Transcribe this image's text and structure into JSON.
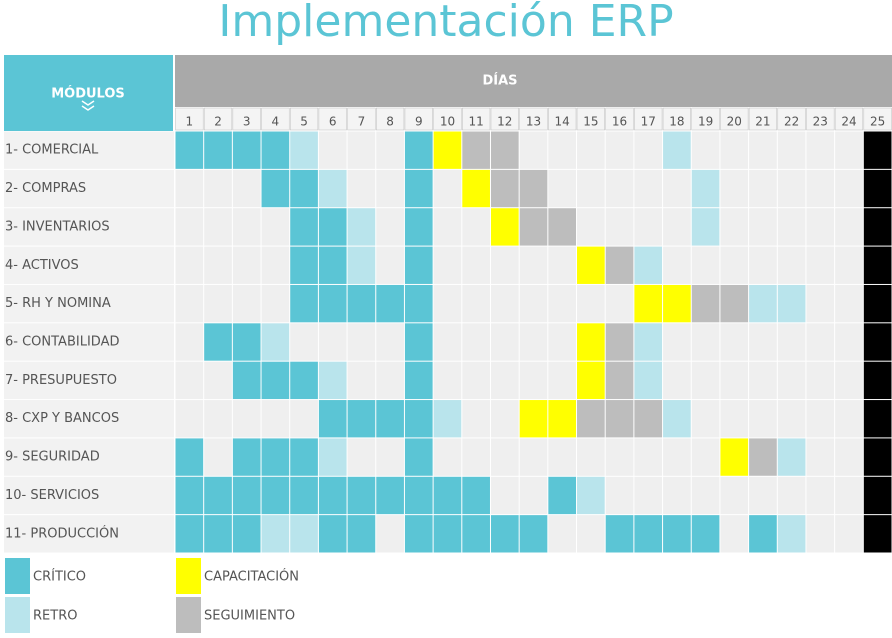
{
  "title": "Implementación ERP",
  "header": {
    "modules": "MÓDULOS",
    "days": "DÍAS"
  },
  "days": [
    1,
    2,
    3,
    4,
    5,
    6,
    7,
    8,
    9,
    10,
    11,
    12,
    13,
    14,
    15,
    16,
    17,
    18,
    19,
    20,
    21,
    22,
    23,
    24,
    25
  ],
  "final_day_color": "#000000",
  "empty_color": "#efefef",
  "legend": [
    {
      "label": "CRÍTICO",
      "color": "#5bc5d5"
    },
    {
      "label": "RETRO",
      "color": "#b9e4ec"
    },
    {
      "label": "CAPACITACIÓN",
      "color": "#ffff00"
    },
    {
      "label": "SEGUIMIENTO",
      "color": "#bdbdbd"
    }
  ],
  "rows": [
    {
      "name": "1- COMERCIAL",
      "cells": [
        0,
        0,
        0,
        0,
        1,
        null,
        null,
        null,
        0,
        2,
        3,
        3,
        null,
        null,
        null,
        null,
        null,
        1,
        null,
        null,
        null,
        null,
        null,
        null
      ]
    },
    {
      "name": "2- COMPRAS",
      "cells": [
        null,
        null,
        null,
        0,
        0,
        1,
        null,
        null,
        0,
        null,
        2,
        3,
        3,
        null,
        null,
        null,
        null,
        null,
        1,
        null,
        null,
        null,
        null,
        null
      ]
    },
    {
      "name": "3- INVENTARIOS",
      "cells": [
        null,
        null,
        null,
        null,
        0,
        0,
        1,
        null,
        0,
        null,
        null,
        2,
        3,
        3,
        null,
        null,
        null,
        null,
        1,
        null,
        null,
        null,
        null,
        null
      ]
    },
    {
      "name": "4- ACTIVOS",
      "cells": [
        null,
        null,
        null,
        null,
        0,
        0,
        1,
        null,
        0,
        null,
        null,
        null,
        null,
        null,
        2,
        3,
        1,
        null,
        null,
        null,
        null,
        null,
        null,
        null
      ]
    },
    {
      "name": "5- RH Y NOMINA",
      "cells": [
        null,
        null,
        null,
        null,
        0,
        0,
        0,
        0,
        0,
        null,
        null,
        null,
        null,
        null,
        null,
        null,
        2,
        2,
        3,
        3,
        1,
        1,
        null,
        null
      ]
    },
    {
      "name": "6- CONTABILIDAD",
      "cells": [
        null,
        0,
        0,
        1,
        null,
        null,
        null,
        null,
        0,
        null,
        null,
        null,
        null,
        null,
        2,
        3,
        1,
        null,
        null,
        null,
        null,
        null,
        null,
        null
      ]
    },
    {
      "name": "7- PRESUPUESTO",
      "cells": [
        null,
        null,
        0,
        0,
        0,
        1,
        null,
        null,
        0,
        null,
        null,
        null,
        null,
        null,
        2,
        3,
        1,
        null,
        null,
        null,
        null,
        null,
        null,
        null
      ]
    },
    {
      "name": "8- CXP Y BANCOS",
      "cells": [
        null,
        null,
        null,
        null,
        null,
        0,
        0,
        0,
        0,
        1,
        null,
        null,
        2,
        2,
        3,
        3,
        3,
        1,
        null,
        null,
        null,
        null,
        null,
        null
      ]
    },
    {
      "name": "9- SEGURIDAD",
      "cells": [
        0,
        null,
        0,
        0,
        0,
        1,
        null,
        null,
        0,
        null,
        null,
        null,
        null,
        null,
        null,
        null,
        null,
        null,
        null,
        2,
        3,
        1,
        null,
        null
      ]
    },
    {
      "name": "10- SERVICIOS",
      "cells": [
        0,
        0,
        0,
        0,
        0,
        0,
        0,
        0,
        0,
        0,
        0,
        null,
        null,
        0,
        1,
        null,
        null,
        null,
        null,
        null,
        null,
        null,
        null,
        null
      ]
    },
    {
      "name": "11- PRODUCCIÓN",
      "cells": [
        0,
        0,
        0,
        1,
        1,
        0,
        0,
        null,
        0,
        0,
        0,
        0,
        0,
        null,
        null,
        0,
        0,
        0,
        0,
        null,
        0,
        1,
        null,
        null
      ]
    }
  ]
}
